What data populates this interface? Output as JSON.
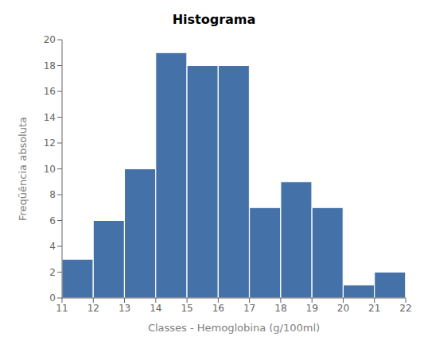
{
  "chart_data": {
    "type": "histogram",
    "title": "Histograma",
    "xlabel": "Classes - Hemoglobina (g/100ml)",
    "ylabel": "Freqüência absoluta",
    "bins": [
      11,
      12,
      13,
      14,
      15,
      16,
      17,
      18,
      19,
      20,
      21,
      22
    ],
    "values": [
      3,
      6,
      10,
      19,
      18,
      18,
      7,
      9,
      7,
      1,
      2
    ],
    "color": "#4472A8",
    "xlim": [
      11,
      22
    ],
    "xticks": [
      11,
      12,
      13,
      14,
      15,
      16,
      17,
      18,
      19,
      20,
      21,
      22
    ],
    "ylim": [
      0,
      20
    ],
    "yticks": [
      0,
      2,
      4,
      6,
      8,
      10,
      12,
      14,
      16,
      18,
      20
    ],
    "grid": false
  }
}
